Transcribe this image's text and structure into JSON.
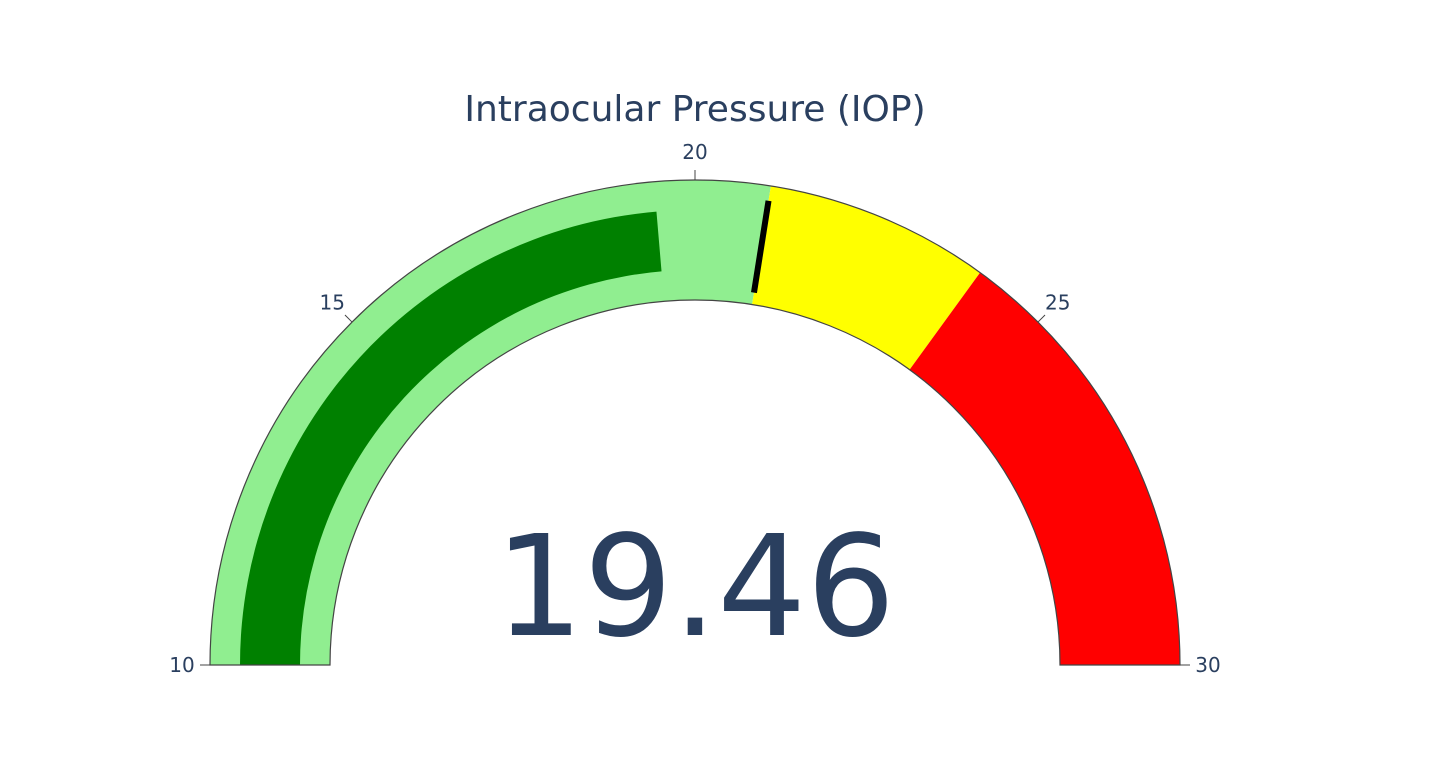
{
  "chart_data": {
    "type": "gauge",
    "title": "Intraocular Pressure (IOP)",
    "value": 19.46,
    "value_text": "19.46",
    "axis": {
      "range": [
        10,
        30
      ],
      "tickvals": [
        10,
        15,
        20,
        25,
        30
      ],
      "ticktext": [
        "10",
        "15",
        "20",
        "25",
        "30"
      ]
    },
    "bar": {
      "value": 19.46,
      "color": "#008000"
    },
    "steps": [
      {
        "range": [
          10,
          21
        ],
        "color": "#90ee90"
      },
      {
        "range": [
          21,
          24
        ],
        "color": "#ffff00"
      },
      {
        "range": [
          24,
          30
        ],
        "color": "#ff0000"
      }
    ],
    "threshold": {
      "value": 21,
      "color": "#000000"
    },
    "colors": {
      "text": "#2a3f5f",
      "outline": "#444444",
      "background": "#ffffff"
    }
  }
}
